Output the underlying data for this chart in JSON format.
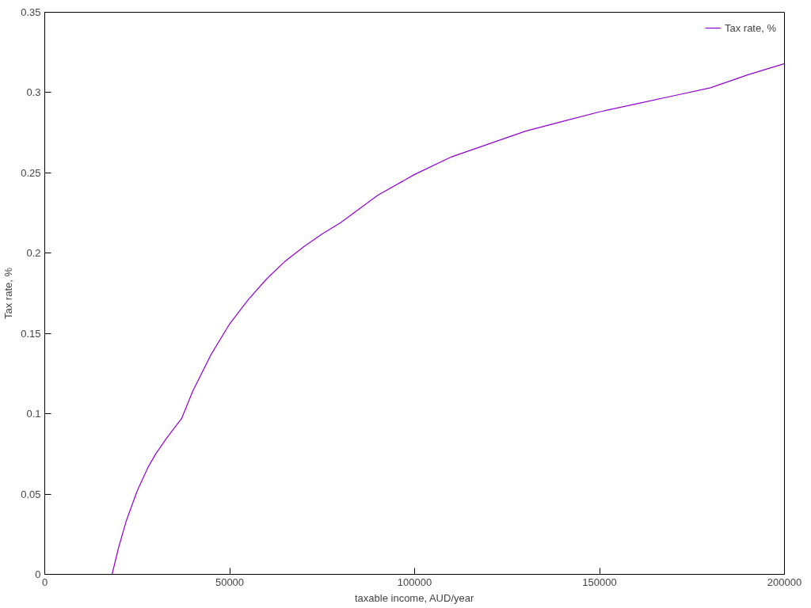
{
  "chart_data": {
    "type": "line",
    "xlabel": "taxable income, AUD/year",
    "ylabel": "Tax rate, %",
    "x": [
      18200,
      20000,
      22000,
      25000,
      28000,
      30000,
      33000,
      37000,
      40000,
      45000,
      50000,
      55000,
      60000,
      65000,
      70000,
      75000,
      80000,
      90000,
      100000,
      110000,
      120000,
      130000,
      140000,
      150000,
      160000,
      170000,
      180000,
      190000,
      200000
    ],
    "series": [
      {
        "name": "Tax rate, %",
        "color": "#9400d3",
        "values": [
          0,
          0.017,
          0.033,
          0.052,
          0.067,
          0.075,
          0.085,
          0.097,
          0.114,
          0.137,
          0.156,
          0.171,
          0.184,
          0.195,
          0.204,
          0.212,
          0.219,
          0.236,
          0.249,
          0.26,
          0.268,
          0.276,
          0.282,
          0.288,
          0.293,
          0.298,
          0.303,
          0.311,
          0.318
        ]
      }
    ],
    "xlim": [
      0,
      200000
    ],
    "xticks": [
      0,
      50000,
      100000,
      150000,
      200000
    ],
    "ylim": [
      0,
      0.35
    ],
    "yticks": [
      0,
      0.05,
      0.1,
      0.15,
      0.2,
      0.25,
      0.3,
      0.35
    ],
    "grid": false,
    "legend": "top right",
    "line_style": "solid",
    "marker": "none"
  }
}
